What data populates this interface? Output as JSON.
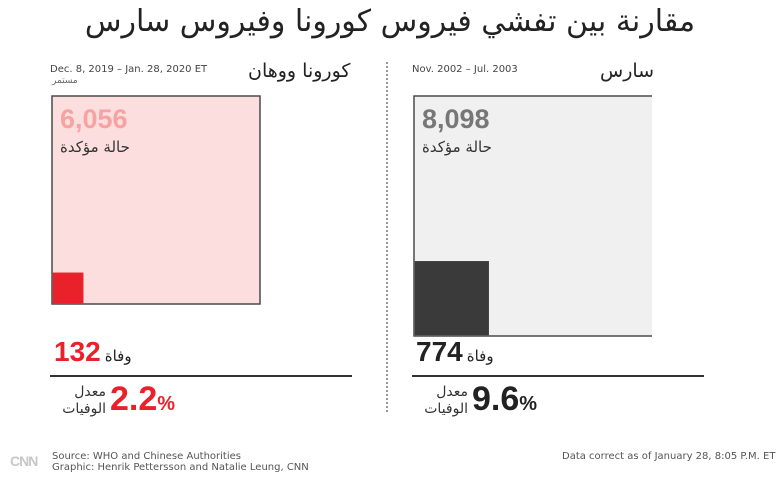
{
  "title": "مقارنة بين تفشي فيروس كورونا وفيروس سارس",
  "chart_data": [
    {
      "type": "area",
      "name": "كورونا ووهان",
      "date_range": "Dec. 8, 2019 – Jan. 28, 2020 ET",
      "status": "مستمر",
      "confirmed_cases": 6056,
      "confirmed_cases_display": "6,056",
      "confirmed_label": "حالة مؤكدة",
      "deaths": 132,
      "deaths_display": "132",
      "deaths_label": "وفاة",
      "fatality_rate": 2.2,
      "fatality_rate_display": "2.2",
      "fatality_rate_label": "معدل الوفيات",
      "colors": {
        "cases_fill": "#fcdede",
        "cases_stroke": "#4a4a4a",
        "deaths_fill": "#e8212b",
        "cases_number": "#f6a3a3",
        "accent": "#e8212b"
      }
    },
    {
      "type": "area",
      "name": "سارس",
      "date_range": "Nov. 2002 – Jul. 2003",
      "confirmed_cases": 8098,
      "confirmed_cases_display": "8,098",
      "confirmed_label": "حالة مؤكدة",
      "deaths": 774,
      "deaths_display": "774",
      "deaths_label": "وفاة",
      "fatality_rate": 9.6,
      "fatality_rate_display": "9.6",
      "fatality_rate_label": "معدل الوفيات",
      "colors": {
        "cases_fill": "#f0f0f0",
        "cases_stroke": "#4a4a4a",
        "deaths_fill": "#3a3a3a",
        "cases_number": "#777777",
        "accent": "#222222"
      }
    }
  ],
  "percent_sign": "%",
  "footer": {
    "source": "Source: WHO and Chinese Authorities",
    "credit": "Graphic: Henrik Pettersson and Natalie Leung, CNN",
    "note": "Data correct as of January 28, 8:05 P.M. ET",
    "logo_text": "CNN"
  }
}
